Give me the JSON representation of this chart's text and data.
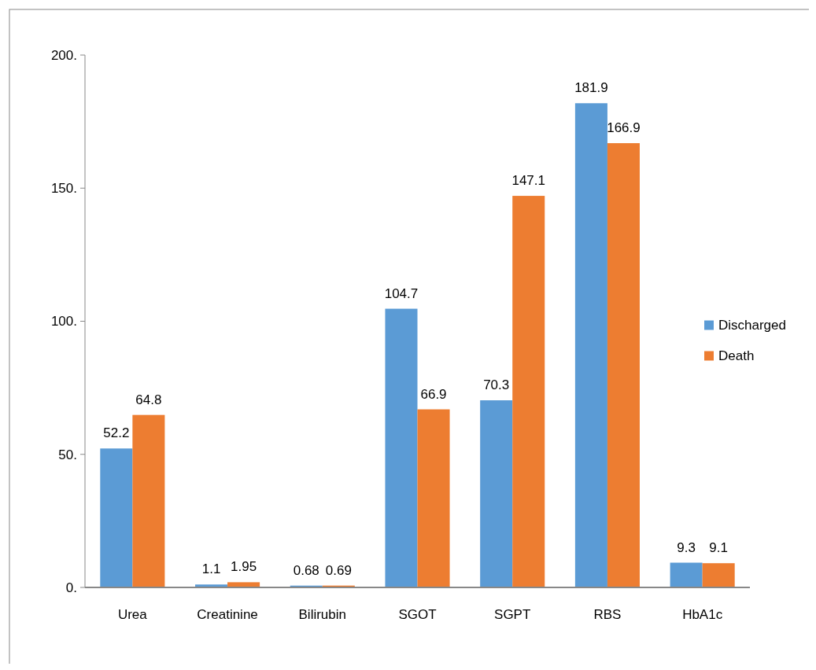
{
  "chart_data": {
    "type": "bar",
    "categories": [
      "Urea",
      "Creatinine",
      "Bilirubin",
      "SGOT",
      "SGPT",
      "RBS",
      "HbA1c"
    ],
    "series": [
      {
        "name": "Discharged",
        "color": "#5b9bd5",
        "values": [
          52.2,
          1.1,
          0.68,
          104.7,
          70.3,
          181.9,
          9.3
        ]
      },
      {
        "name": "Death",
        "color": "#ed7d31",
        "values": [
          64.8,
          1.95,
          0.69,
          66.9,
          147.1,
          166.9,
          9.1
        ]
      }
    ],
    "ylim": [
      0,
      200
    ],
    "yticks": [
      {
        "value": 0,
        "label": "0."
      },
      {
        "value": 50,
        "label": "50."
      },
      {
        "value": 100,
        "label": "100."
      },
      {
        "value": 150,
        "label": "150."
      },
      {
        "value": 200,
        "label": "200."
      }
    ],
    "data_labels": true,
    "legend": "right",
    "grid": false
  }
}
